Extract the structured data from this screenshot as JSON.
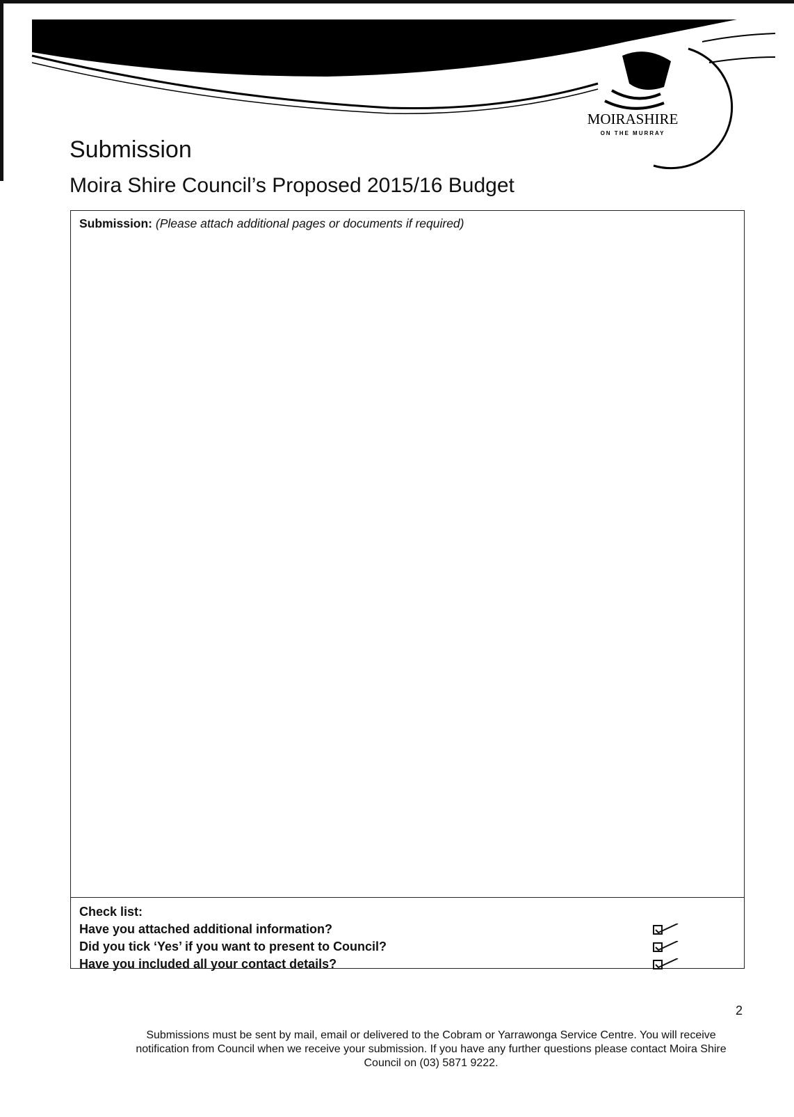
{
  "logo": {
    "name": "MOIRASHIRE",
    "tagline": "ON THE MURRAY"
  },
  "header": {
    "title": "Submission",
    "subtitle": "Moira Shire Council’s Proposed 2015/16 Budget"
  },
  "form": {
    "label": "Submission:",
    "hint": "(Please attach additional pages or documents if required)",
    "checklist": {
      "title": "Check list:",
      "items": [
        "Have you attached additional information?",
        "Did you tick ‘Yes’ if you want to present to Council?",
        "Have you included all your contact details?"
      ]
    }
  },
  "page_number": "2",
  "footer": "Submissions must be sent by mail, email or delivered to the Cobram or Yarrawonga Service Centre. You will receive notification from Council when we receive your submission. If you have any further questions please contact Moira Shire Council on (03) 5871 9222."
}
